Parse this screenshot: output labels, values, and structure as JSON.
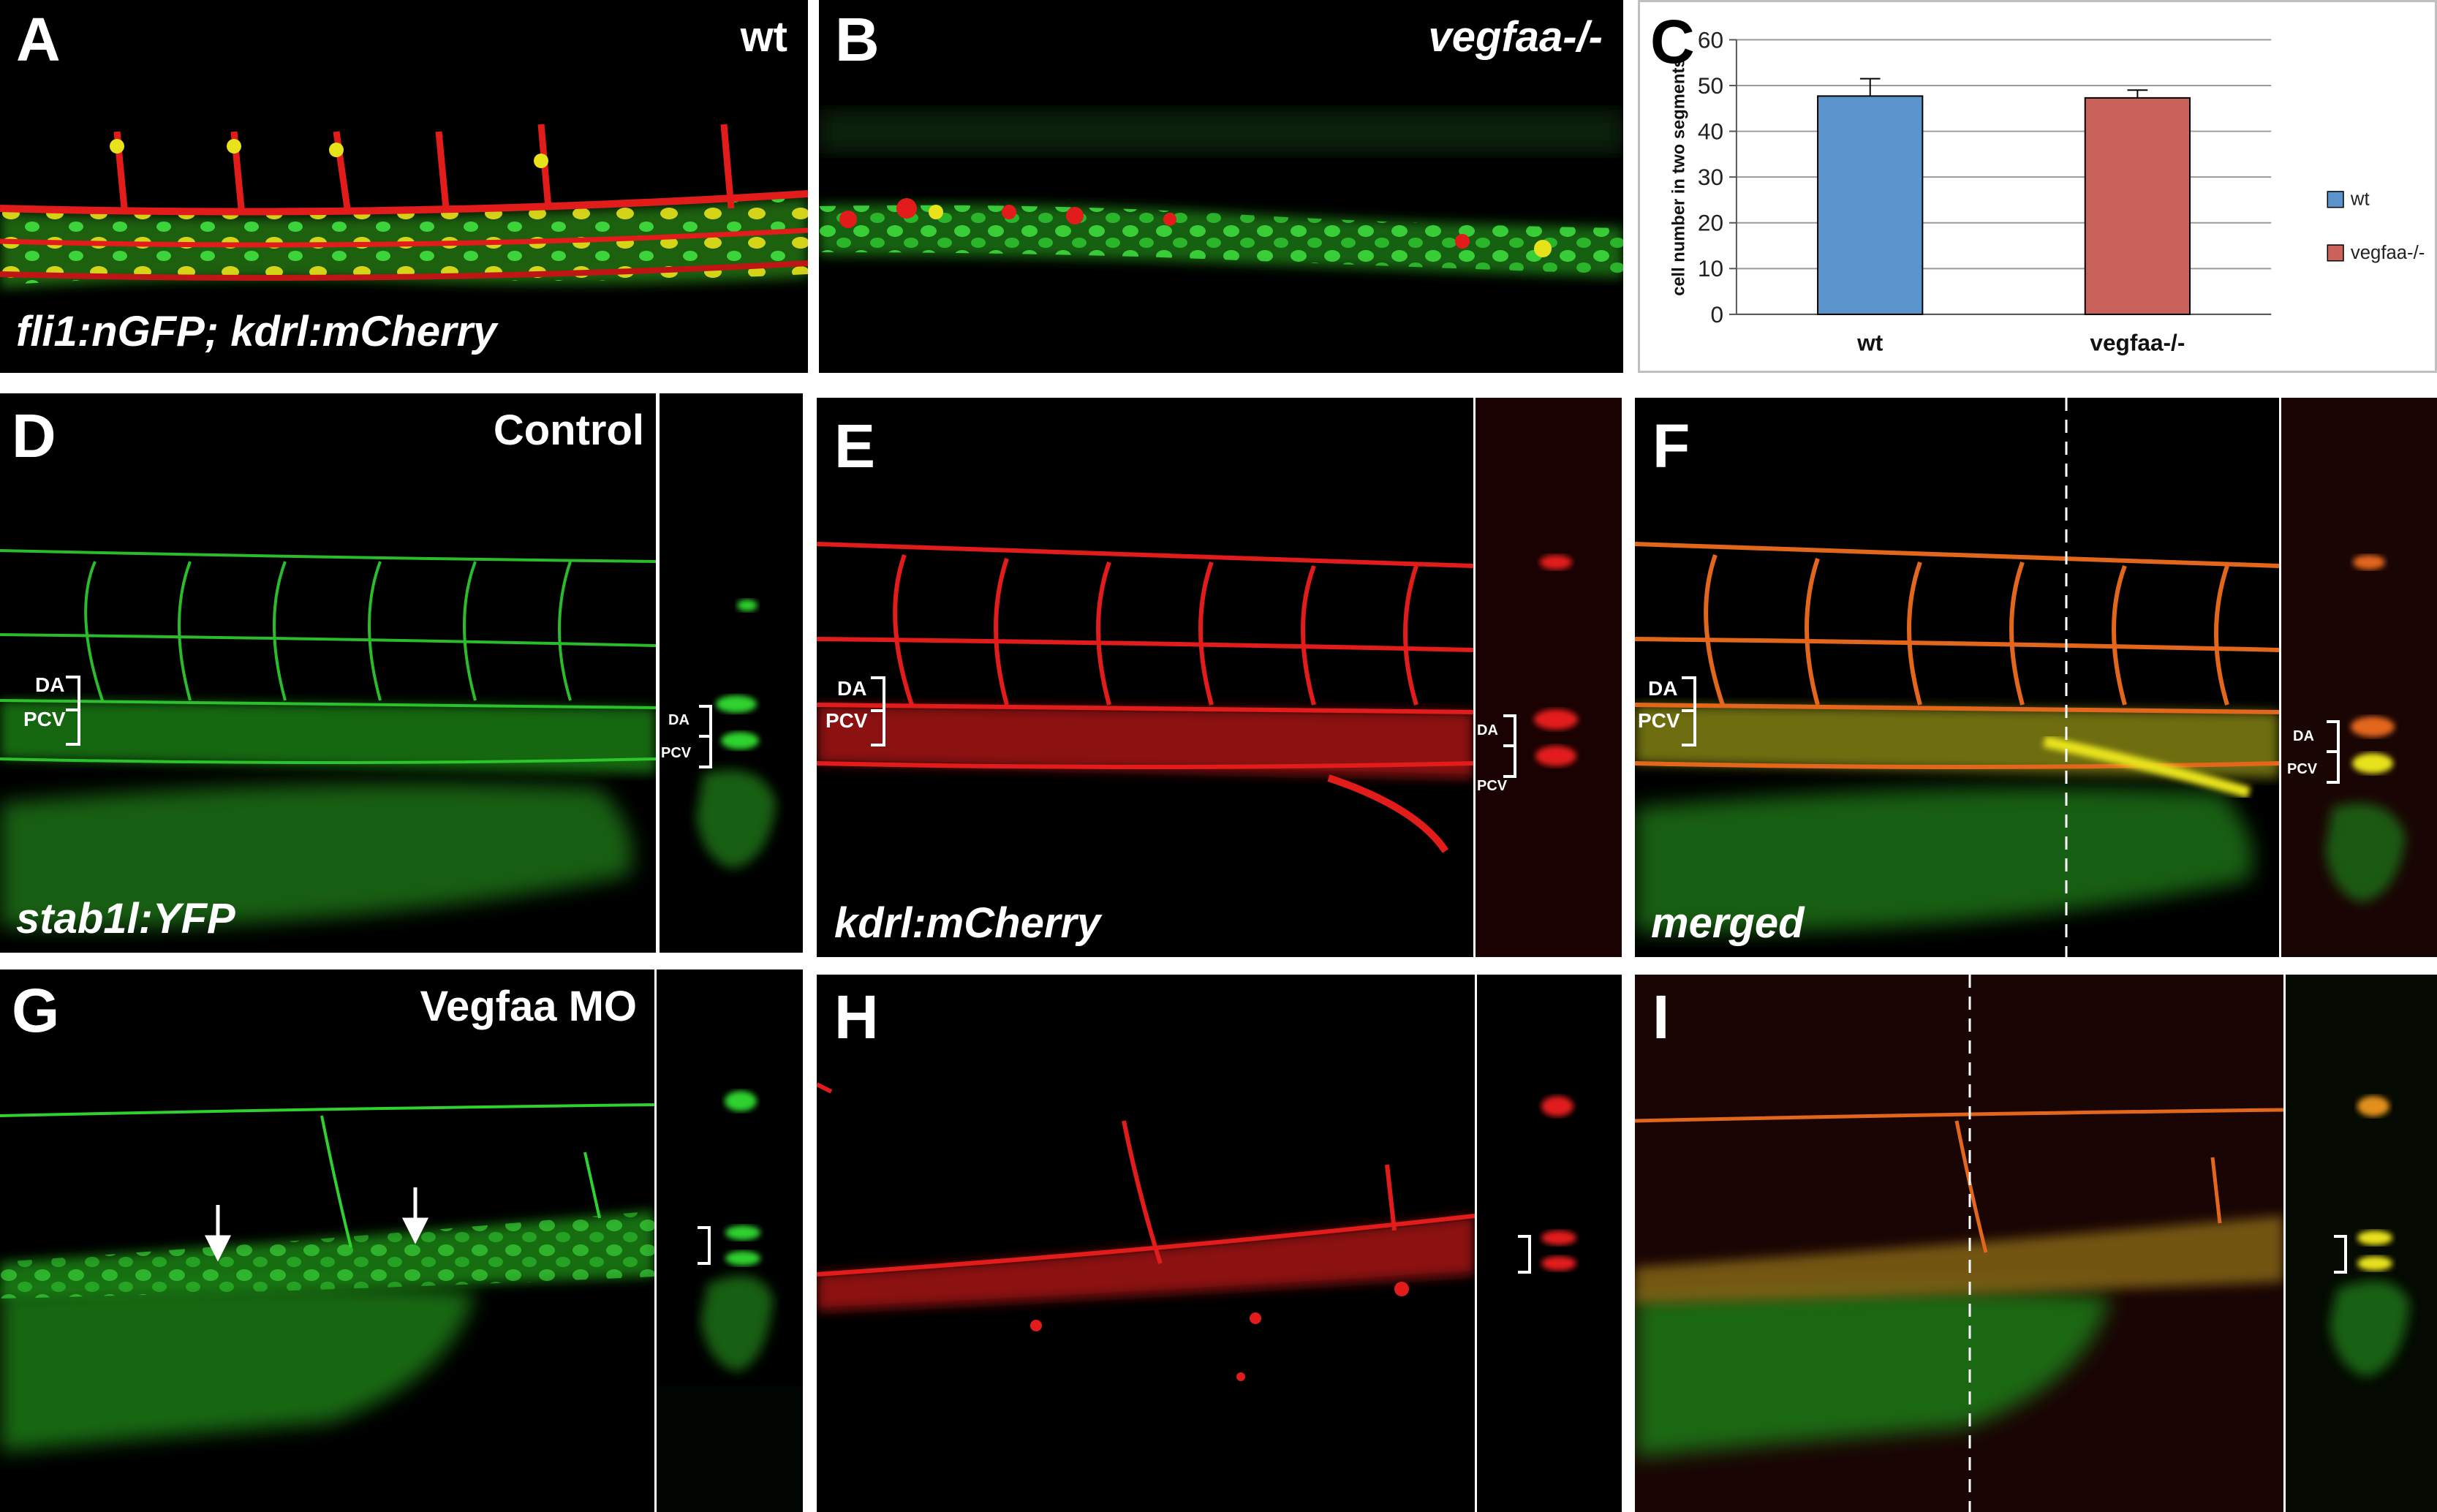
{
  "panels": {
    "A": {
      "letter": "A",
      "condition": "wt",
      "caption": "fli1:nGFP; kdrl:mCherry"
    },
    "B": {
      "letter": "B",
      "condition": "vegfaa-/-"
    },
    "C": {
      "letter": "C"
    },
    "D": {
      "letter": "D",
      "condition": "Control",
      "caption": "stab1l:YFP",
      "label_da": "DA",
      "label_pcv": "PCV"
    },
    "E": {
      "letter": "E",
      "caption": "kdrl:mCherry",
      "label_da": "DA",
      "label_pcv": "PCV"
    },
    "F": {
      "letter": "F",
      "caption": "merged",
      "label_da": "DA",
      "label_pcv": "PCV"
    },
    "G": {
      "letter": "G",
      "condition": "Vegfaa MO"
    },
    "H": {
      "letter": "H"
    },
    "I": {
      "letter": "I"
    }
  },
  "colors": {
    "green": "#2fd12f",
    "red": "#e21b1b",
    "yellow": "#e8e21a",
    "wt_bar": "#5b93cc",
    "mutant_bar": "#c9625b"
  },
  "chart_data": {
    "type": "bar",
    "categories": [
      "wt",
      "vegfaa-/-"
    ],
    "values": [
      47.7,
      47.3
    ],
    "errors": [
      3.8,
      1.7
    ],
    "ylabel": "cell number in two segments",
    "ylim": [
      0,
      60
    ],
    "yticks": [
      0,
      10,
      20,
      30,
      40,
      50,
      60
    ],
    "grid": true,
    "legend": {
      "position": "right",
      "entries": [
        "wt",
        "vegfaa-/-"
      ]
    }
  }
}
